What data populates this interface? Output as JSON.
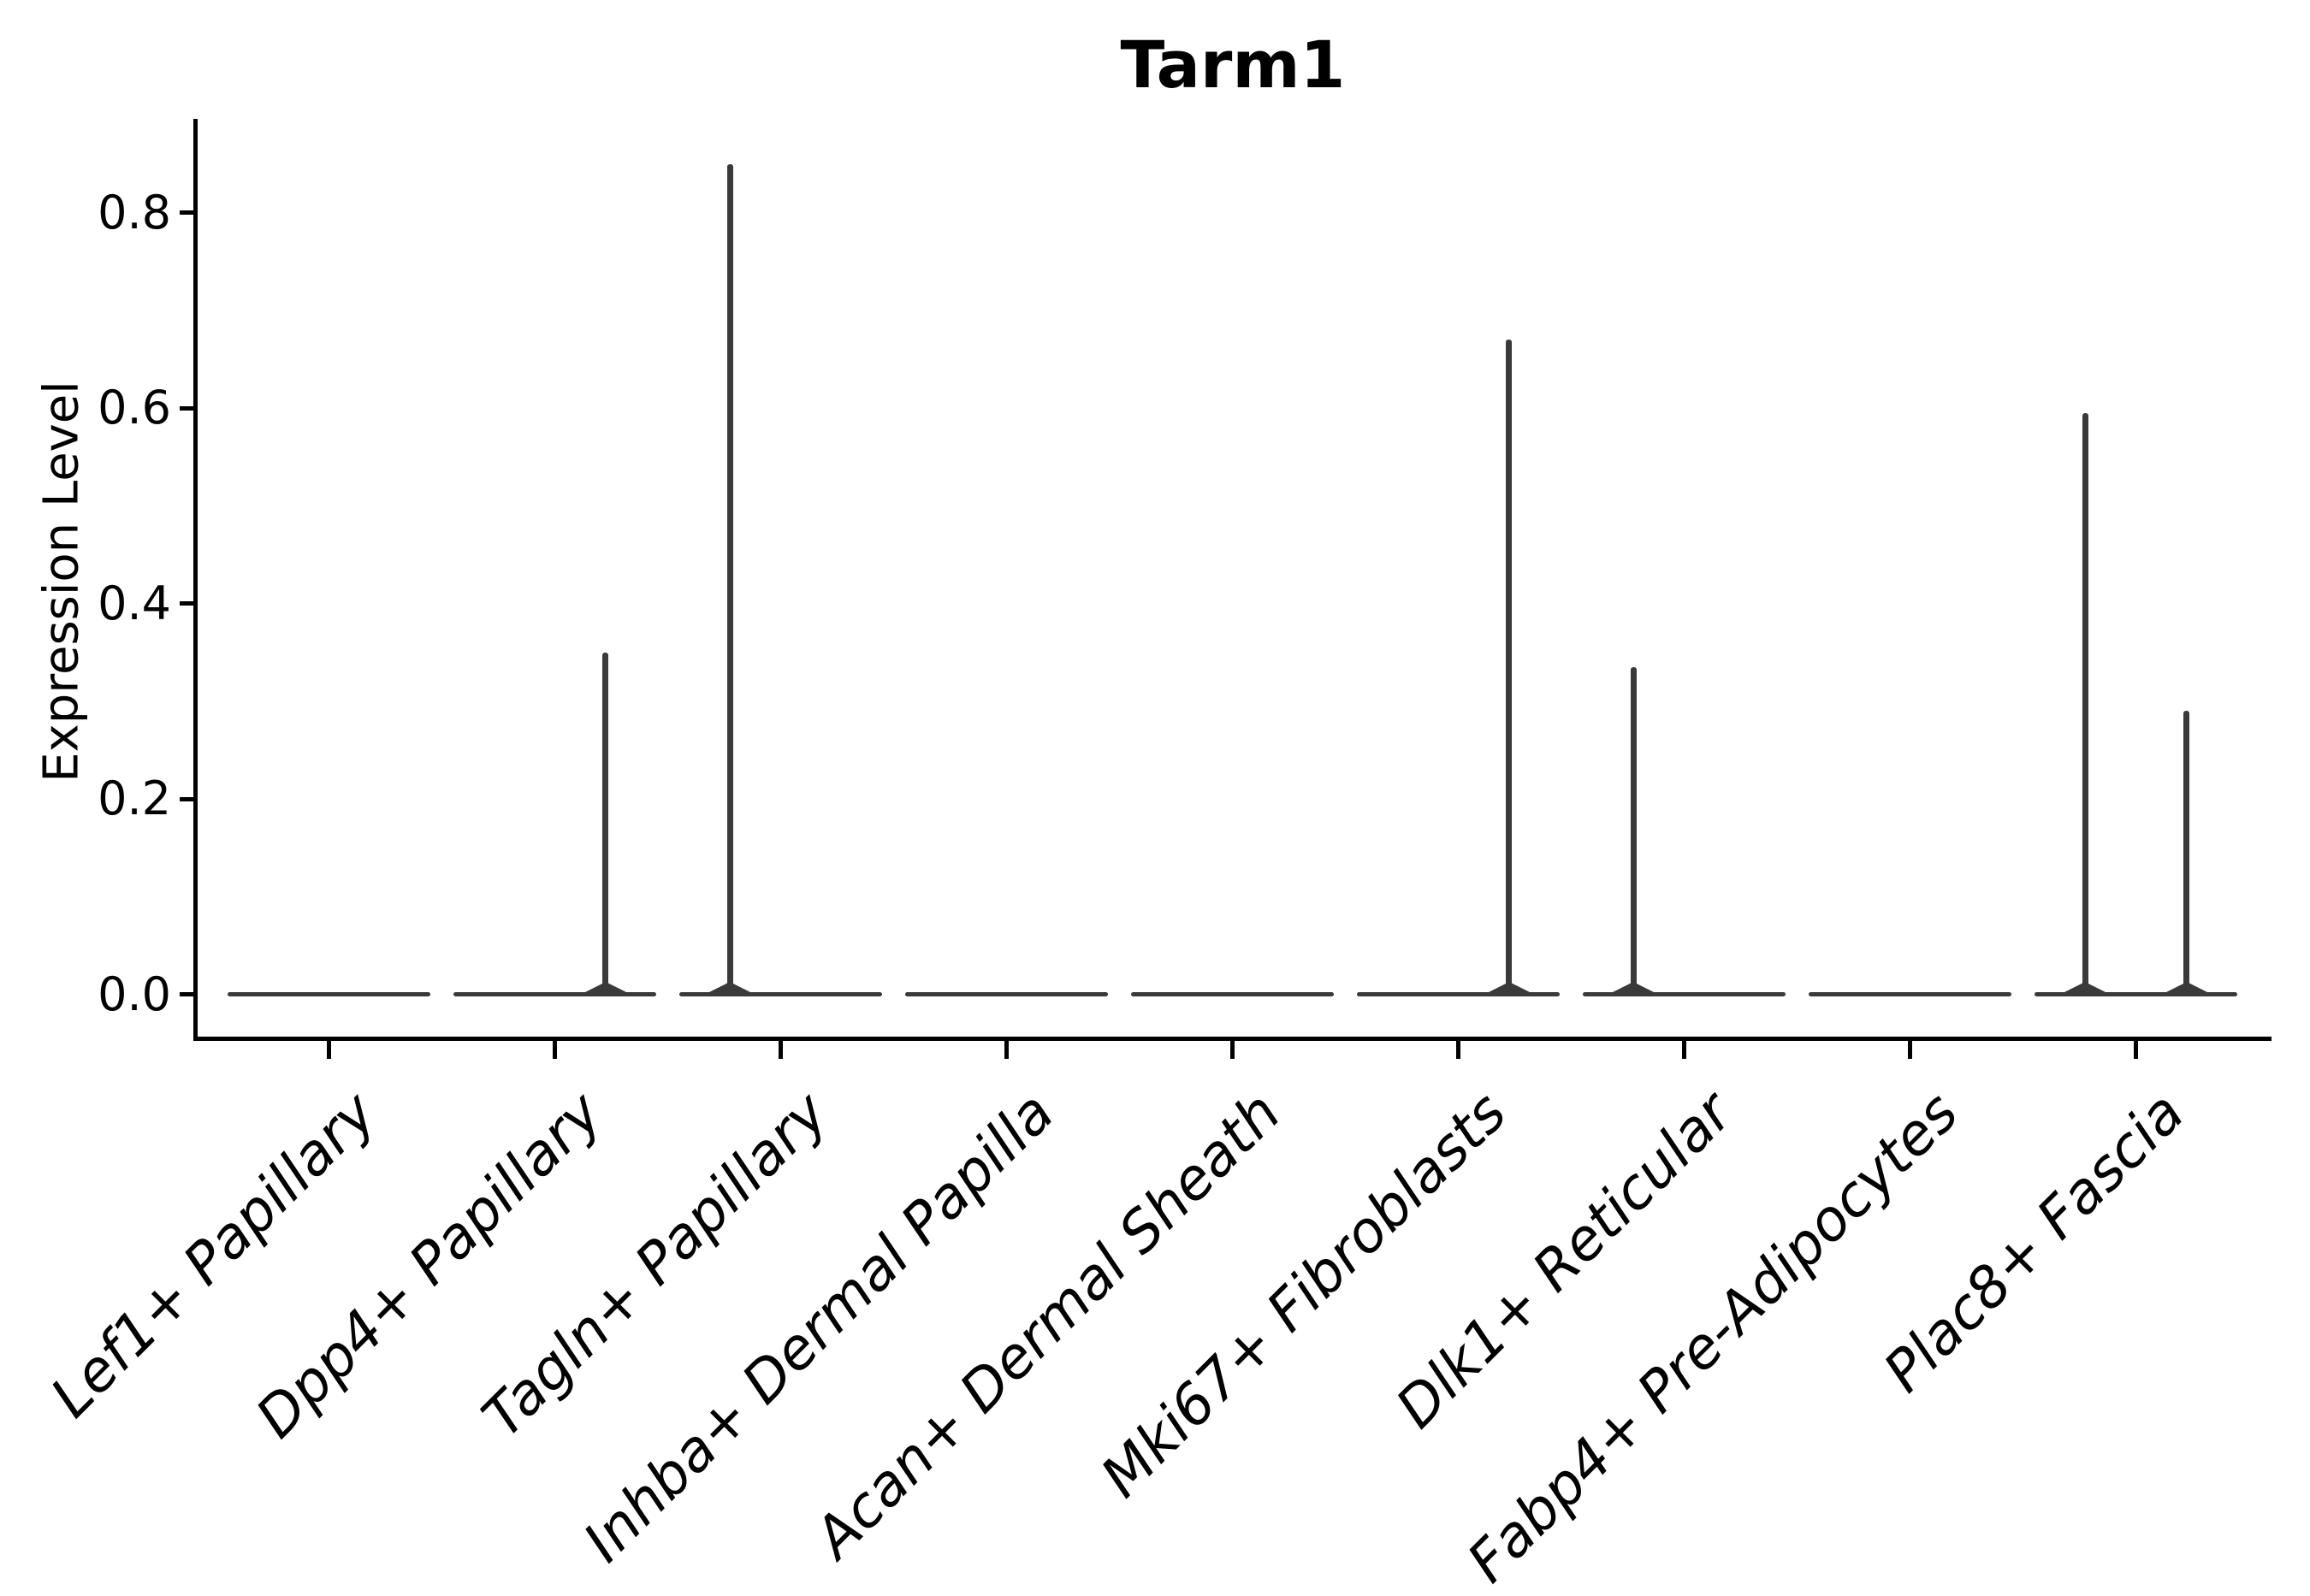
{
  "figure": {
    "title": "Tarm1",
    "ylabel": "Expression Level"
  },
  "colors": {
    "violin": "#3a3a3a",
    "spine": "#000000",
    "text": "#000000",
    "background": "#ffffff"
  },
  "chart_data": {
    "type": "violin",
    "title": "Tarm1",
    "xlabel": "",
    "ylabel": "Expression Level",
    "ylim": [
      -0.043,
      0.896
    ],
    "yticks": [
      0.0,
      0.2,
      0.4,
      0.6,
      0.8
    ],
    "grid": false,
    "legend": "none",
    "categories": [
      "Lef1+ Papillary",
      "Dpp4+ Papillary",
      "Tagln+ Papillary",
      "Inhba+ Dermal Papilla",
      "Acan+ Dermal Sheath",
      "Mki67+ Fibroblasts",
      "Dlk1+ Reticular",
      "Fabp4+ Pre-Adipocytes",
      "Plac8+ Fascia"
    ],
    "violins": [
      {
        "category": "Lef1+ Papillary",
        "baseline_value": 0.0,
        "spikes": []
      },
      {
        "category": "Dpp4+ Papillary",
        "baseline_value": 0.0,
        "spikes": [
          {
            "side": "right",
            "max": 0.35
          }
        ]
      },
      {
        "category": "Tagln+ Papillary",
        "baseline_value": 0.0,
        "spikes": [
          {
            "side": "left",
            "max": 0.85
          }
        ]
      },
      {
        "category": "Inhba+ Dermal Papilla",
        "baseline_value": 0.0,
        "spikes": []
      },
      {
        "category": "Acan+ Dermal Sheath",
        "baseline_value": 0.0,
        "spikes": []
      },
      {
        "category": "Mki67+ Fibroblasts",
        "baseline_value": 0.0,
        "spikes": [
          {
            "side": "right",
            "max": 0.67
          }
        ]
      },
      {
        "category": "Dlk1+ Reticular",
        "baseline_value": 0.0,
        "spikes": [
          {
            "side": "left",
            "max": 0.335
          }
        ]
      },
      {
        "category": "Fabp4+ Pre-Adipocytes",
        "baseline_value": 0.0,
        "spikes": []
      },
      {
        "category": "Plac8+ Fascia",
        "baseline_value": 0.0,
        "spikes": [
          {
            "side": "left",
            "max": 0.595
          },
          {
            "side": "right",
            "max": 0.29
          }
        ]
      }
    ]
  }
}
